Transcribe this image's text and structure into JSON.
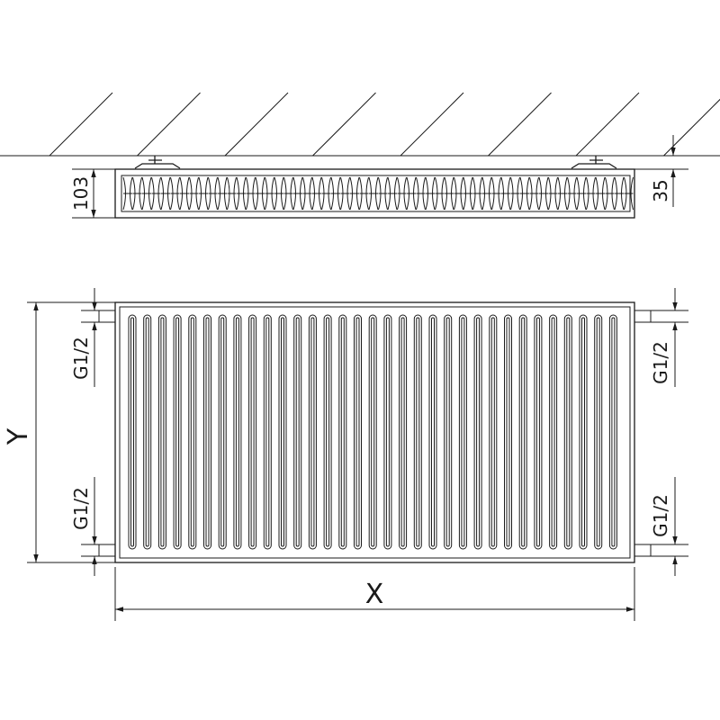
{
  "side_view": {
    "height_label": "103",
    "wall_gap_label": "35"
  },
  "front_view": {
    "height_label": "Y",
    "width_label": "X",
    "connection_labels": [
      "G1/2",
      "G1/2",
      "G1/2",
      "G1/2"
    ]
  },
  "colors": {
    "line": "#1a1a1a",
    "background": "#ffffff"
  }
}
